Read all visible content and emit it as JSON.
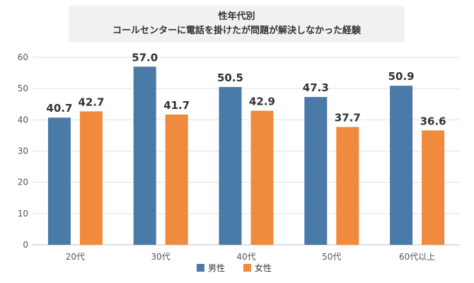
{
  "chart_data": {
    "type": "bar",
    "title": "性年代別",
    "subtitle": "コールセンターに電話を掛けたが問題が解決しなかった経験",
    "categories": [
      "20代",
      "30代",
      "40代",
      "50代",
      "60代以上"
    ],
    "series": [
      {
        "name": "男性",
        "color": "#4a7aa8",
        "values": [
          40.7,
          57.0,
          50.5,
          47.3,
          50.9
        ]
      },
      {
        "name": "女性",
        "color": "#f08a3c",
        "values": [
          42.7,
          41.7,
          42.9,
          37.7,
          36.6
        ]
      }
    ],
    "ylim": [
      0,
      60
    ],
    "yticks": [
      0,
      10,
      20,
      30,
      40,
      50,
      60
    ],
    "grid": true,
    "legend": "bottom"
  }
}
